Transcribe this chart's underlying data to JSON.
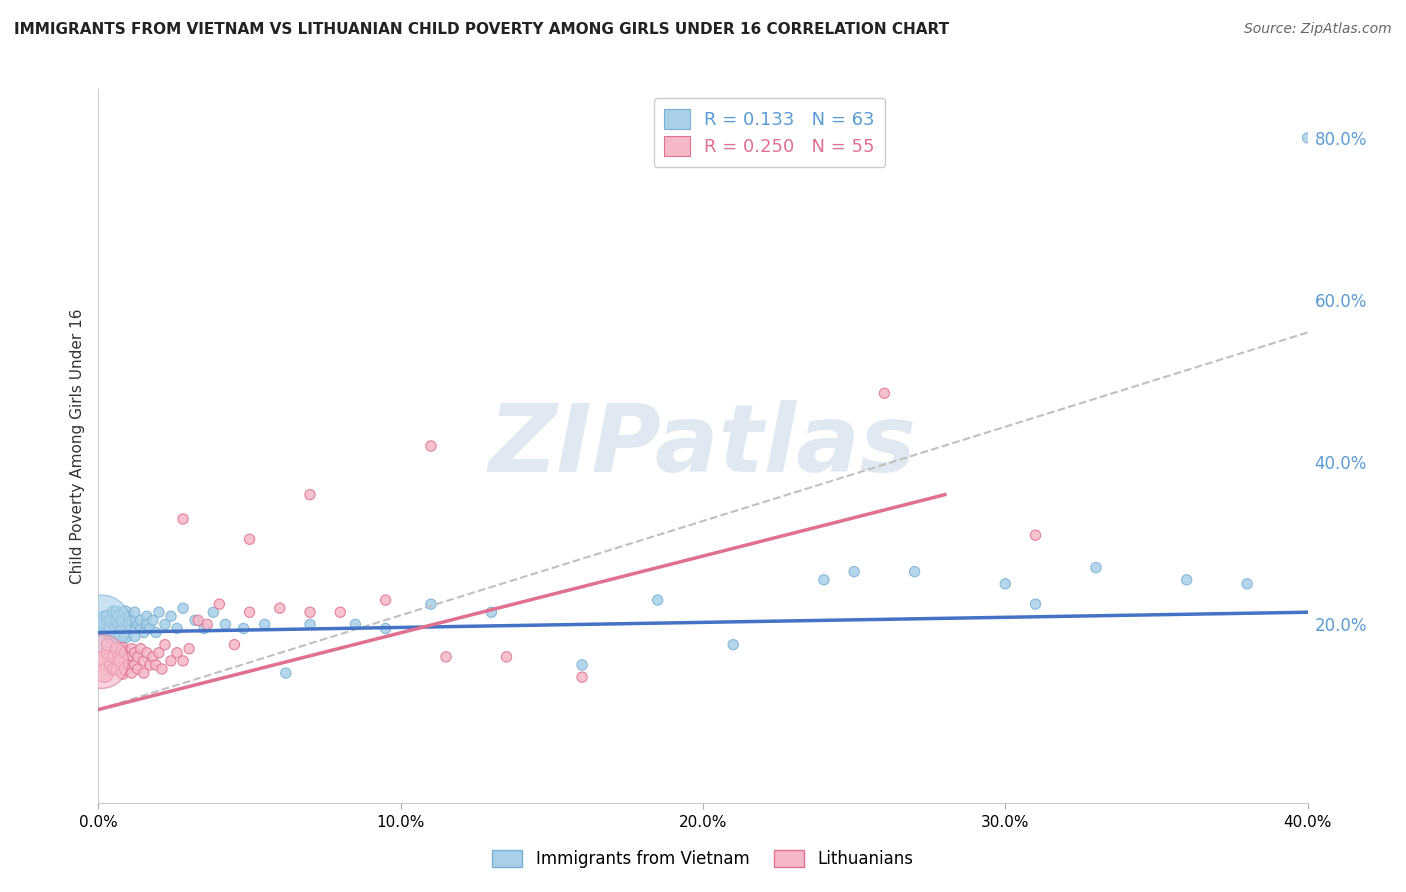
{
  "title": "IMMIGRANTS FROM VIETNAM VS LITHUANIAN CHILD POVERTY AMONG GIRLS UNDER 16 CORRELATION CHART",
  "source": "Source: ZipAtlas.com",
  "ylabel": "Child Poverty Among Girls Under 16",
  "series1_label": "Immigrants from Vietnam",
  "series2_label": "Lithuanians",
  "series1_R": 0.133,
  "series1_N": 63,
  "series2_R": 0.25,
  "series2_N": 55,
  "series1_color": "#a8d0e8",
  "series2_color": "#f5b8c8",
  "series1_edge": "#7ab0d4",
  "series2_edge": "#e07090",
  "trend1_color": "#c0c0c0",
  "trend2_color": "#e07090",
  "trend_blue_color": "#4472c4",
  "watermark_text": "ZIPatlas",
  "xlim": [
    0.0,
    0.4
  ],
  "ylim": [
    -0.02,
    0.86
  ],
  "xtick_vals": [
    0.0,
    0.1,
    0.2,
    0.3,
    0.4
  ],
  "xtick_labels": [
    "0.0%",
    "10.0%",
    "20.0%",
    "30.0%",
    "40.0%"
  ],
  "ytick_right_vals": [
    0.2,
    0.4,
    0.6,
    0.8
  ],
  "ytick_right_labels": [
    "20.0%",
    "40.0%",
    "60.0%",
    "80.0%"
  ],
  "grid_color": "#d8d8d8",
  "background": "#ffffff",
  "series1_x": [
    0.001,
    0.002,
    0.002,
    0.003,
    0.003,
    0.004,
    0.004,
    0.005,
    0.005,
    0.006,
    0.006,
    0.006,
    0.007,
    0.007,
    0.007,
    0.008,
    0.008,
    0.009,
    0.009,
    0.01,
    0.01,
    0.011,
    0.011,
    0.012,
    0.012,
    0.013,
    0.014,
    0.014,
    0.015,
    0.016,
    0.016,
    0.017,
    0.018,
    0.019,
    0.02,
    0.022,
    0.024,
    0.026,
    0.028,
    0.032,
    0.035,
    0.038,
    0.042,
    0.048,
    0.055,
    0.062,
    0.07,
    0.085,
    0.095,
    0.11,
    0.13,
    0.16,
    0.185,
    0.21,
    0.24,
    0.27,
    0.3,
    0.33,
    0.36,
    0.38,
    0.31,
    0.25,
    0.4
  ],
  "series1_y": [
    0.2,
    0.195,
    0.205,
    0.19,
    0.21,
    0.195,
    0.205,
    0.185,
    0.215,
    0.195,
    0.205,
    0.215,
    0.185,
    0.2,
    0.21,
    0.195,
    0.205,
    0.185,
    0.215,
    0.2,
    0.21,
    0.195,
    0.205,
    0.185,
    0.215,
    0.2,
    0.195,
    0.205,
    0.19,
    0.21,
    0.2,
    0.195,
    0.205,
    0.19,
    0.215,
    0.2,
    0.21,
    0.195,
    0.22,
    0.205,
    0.195,
    0.215,
    0.2,
    0.195,
    0.2,
    0.14,
    0.2,
    0.2,
    0.195,
    0.225,
    0.215,
    0.15,
    0.23,
    0.175,
    0.255,
    0.265,
    0.25,
    0.27,
    0.255,
    0.25,
    0.225,
    0.265,
    0.8
  ],
  "series2_x": [
    0.001,
    0.002,
    0.003,
    0.003,
    0.004,
    0.005,
    0.005,
    0.006,
    0.006,
    0.007,
    0.007,
    0.008,
    0.008,
    0.009,
    0.009,
    0.01,
    0.01,
    0.011,
    0.011,
    0.012,
    0.012,
    0.013,
    0.013,
    0.014,
    0.015,
    0.015,
    0.016,
    0.017,
    0.018,
    0.019,
    0.02,
    0.021,
    0.022,
    0.024,
    0.026,
    0.028,
    0.03,
    0.033,
    0.036,
    0.04,
    0.045,
    0.05,
    0.06,
    0.07,
    0.08,
    0.095,
    0.115,
    0.135,
    0.16,
    0.05,
    0.028,
    0.07,
    0.11,
    0.26,
    0.31
  ],
  "series2_y": [
    0.155,
    0.14,
    0.165,
    0.175,
    0.15,
    0.16,
    0.145,
    0.17,
    0.145,
    0.16,
    0.155,
    0.17,
    0.14,
    0.165,
    0.145,
    0.16,
    0.15,
    0.17,
    0.14,
    0.165,
    0.15,
    0.16,
    0.145,
    0.17,
    0.155,
    0.14,
    0.165,
    0.15,
    0.16,
    0.15,
    0.165,
    0.145,
    0.175,
    0.155,
    0.165,
    0.155,
    0.17,
    0.205,
    0.2,
    0.225,
    0.175,
    0.215,
    0.22,
    0.215,
    0.215,
    0.23,
    0.16,
    0.16,
    0.135,
    0.305,
    0.33,
    0.36,
    0.42,
    0.485,
    0.31
  ],
  "series1_bubble_x": [
    0.001
  ],
  "series1_bubble_y": [
    0.2
  ],
  "series1_bubble_size": 1800,
  "series2_bubble_x": [
    0.001
  ],
  "series2_bubble_y": [
    0.155
  ],
  "series2_bubble_size": 1500
}
